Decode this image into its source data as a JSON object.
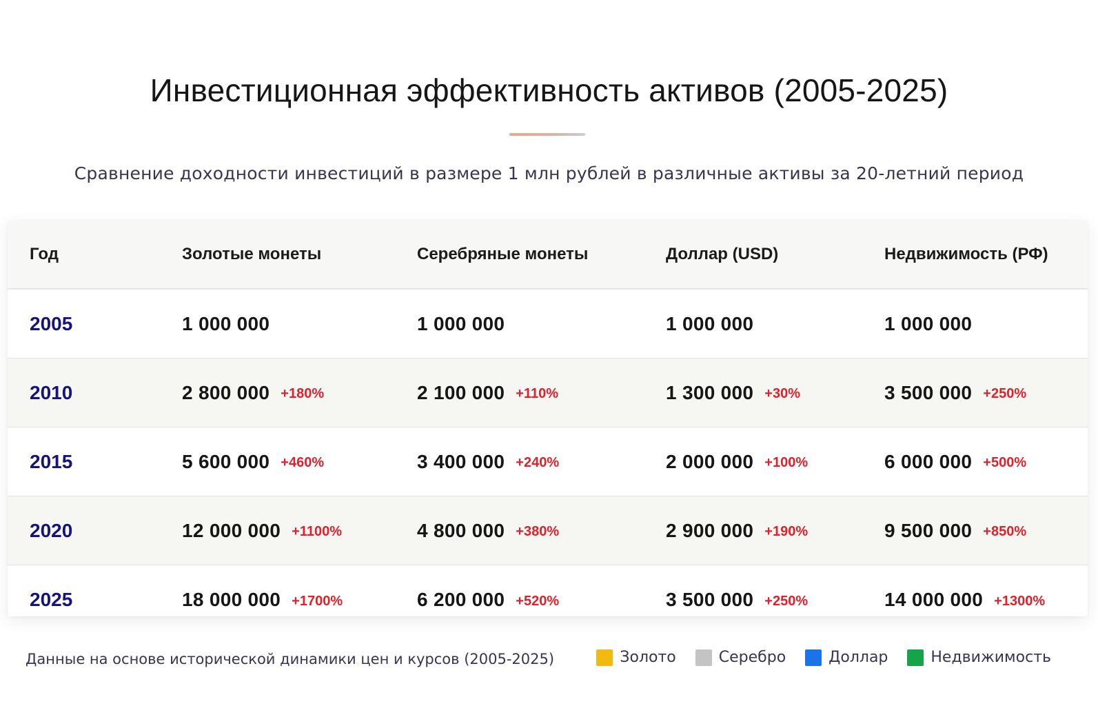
{
  "page": {
    "title": "Инвестиционная эффективность активов (2005-2025)",
    "subtitle": "Сравнение доходности инвестиций в размере 1 млн рублей в различные активы за 20-летний период"
  },
  "table": {
    "headers": [
      "Год",
      "Золотые монеты",
      "Серебряные монеты",
      "Доллар (USD)",
      "Недвижимость (РФ)"
    ],
    "rows": [
      {
        "year": "2005",
        "cells": [
          {
            "amount": "1 000 000",
            "change": ""
          },
          {
            "amount": "1 000 000",
            "change": ""
          },
          {
            "amount": "1 000 000",
            "change": ""
          },
          {
            "amount": "1 000 000",
            "change": ""
          }
        ]
      },
      {
        "year": "2010",
        "cells": [
          {
            "amount": "2 800 000",
            "change": "+180%"
          },
          {
            "amount": "2 100 000",
            "change": "+110%"
          },
          {
            "amount": "1 300 000",
            "change": "+30%"
          },
          {
            "amount": "3 500 000",
            "change": "+250%"
          }
        ]
      },
      {
        "year": "2015",
        "cells": [
          {
            "amount": "5 600 000",
            "change": "+460%"
          },
          {
            "amount": "3 400 000",
            "change": "+240%"
          },
          {
            "amount": "2 000 000",
            "change": "+100%"
          },
          {
            "amount": "6 000 000",
            "change": "+500%"
          }
        ]
      },
      {
        "year": "2020",
        "cells": [
          {
            "amount": "12 000 000",
            "change": "+1100%"
          },
          {
            "amount": "4 800 000",
            "change": "+380%"
          },
          {
            "amount": "2 900 000",
            "change": "+190%"
          },
          {
            "amount": "9 500 000",
            "change": "+850%"
          }
        ]
      },
      {
        "year": "2025",
        "cells": [
          {
            "amount": "18 000 000",
            "change": "+1700%"
          },
          {
            "amount": "6 200 000",
            "change": "+520%"
          },
          {
            "amount": "3 500 000",
            "change": "+250%"
          },
          {
            "amount": "14 000 000",
            "change": "+1300%"
          }
        ]
      }
    ]
  },
  "footer": {
    "note": "Данные на основе исторической динамики цен и курсов (2005-2025)",
    "legend": [
      {
        "label": "Золото",
        "color": "#f2b90f"
      },
      {
        "label": "Серебро",
        "color": "#c4c4c4"
      },
      {
        "label": "Доллар",
        "color": "#1a73e8"
      },
      {
        "label": "Недвижимость",
        "color": "#17a34a"
      }
    ]
  },
  "colors": {
    "year_text": "#14147a",
    "change_text": "#e0202a"
  }
}
